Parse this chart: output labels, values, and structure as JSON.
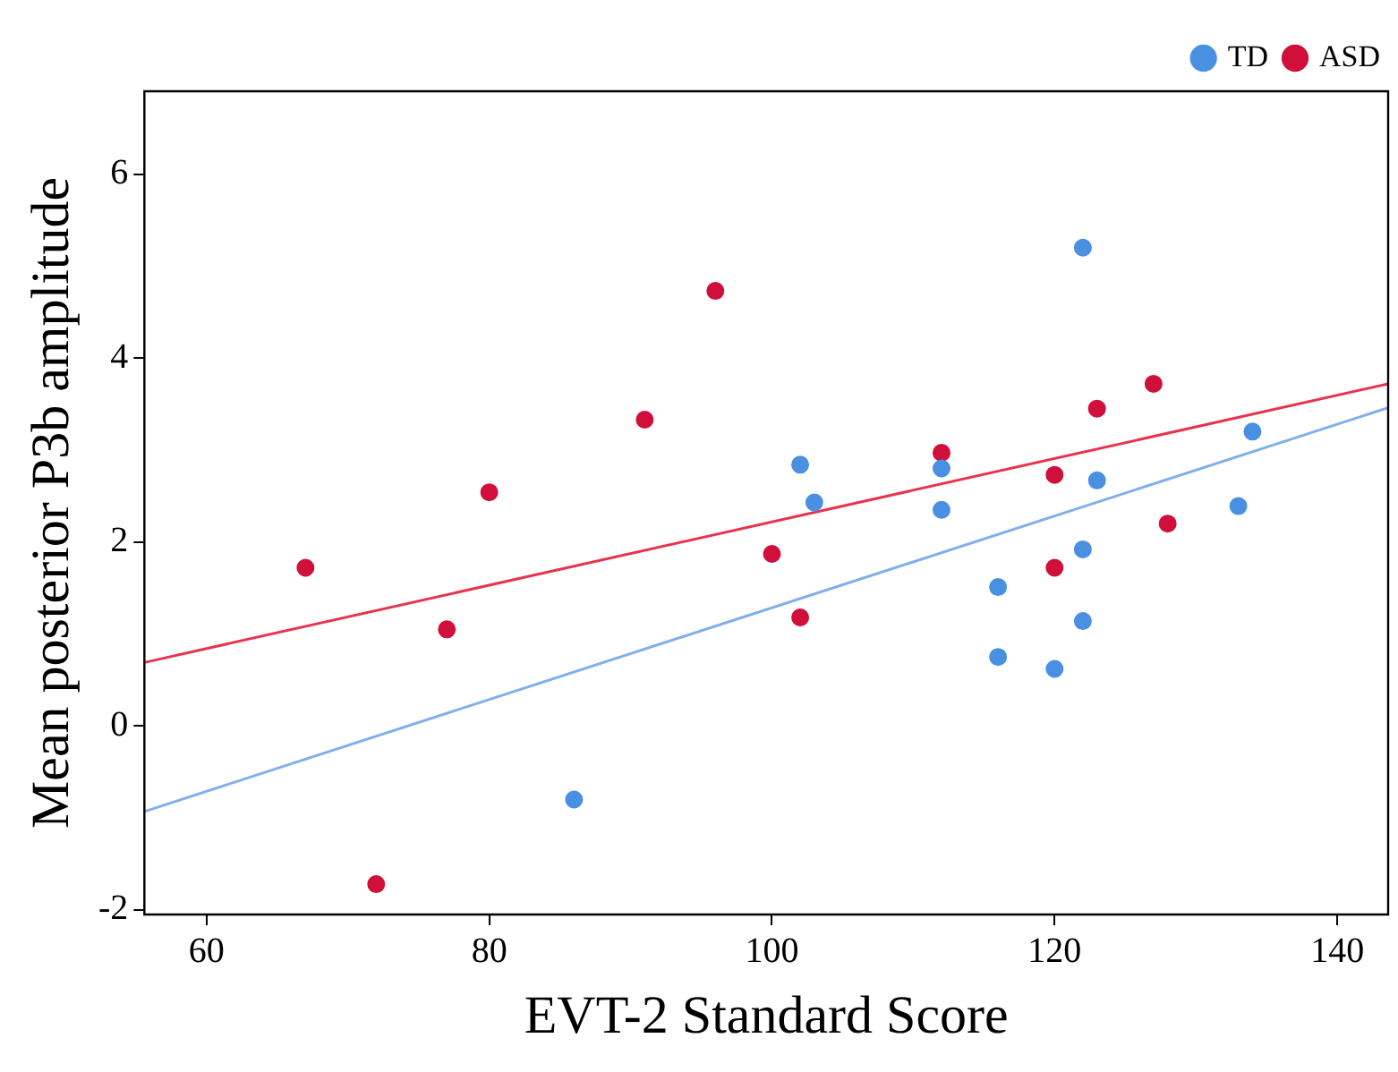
{
  "chart_data": {
    "type": "scatter",
    "xlabel": "EVT-2 Standard Score",
    "ylabel": "Mean posterior P3b amplitude",
    "xlim": [
      55.6,
      143.6
    ],
    "xticks": [
      60,
      80,
      100,
      120,
      140
    ],
    "ylim": [
      -2.05,
      6.9
    ],
    "yticks": [
      -2,
      0,
      2,
      4,
      6
    ],
    "grid": false,
    "legend": "top right",
    "marker": "circle",
    "series": [
      {
        "name": "TD",
        "color": "#4a90e2",
        "x": [
          86,
          102,
          103,
          112,
          112,
          116,
          116,
          120,
          122,
          122,
          122,
          123,
          133,
          134
        ],
        "values": [
          -0.8,
          2.84,
          2.43,
          2.35,
          2.8,
          1.51,
          0.75,
          0.62,
          5.2,
          1.92,
          1.14,
          2.67,
          2.39,
          3.2
        ]
      },
      {
        "name": "ASD",
        "color": "#d0103a",
        "x": [
          67,
          72,
          77,
          80,
          91,
          96,
          100,
          102,
          112,
          120,
          120,
          123,
          127,
          128
        ],
        "values": [
          1.72,
          -1.72,
          1.05,
          2.54,
          3.33,
          4.73,
          1.87,
          1.18,
          2.97,
          2.73,
          1.72,
          3.45,
          3.72,
          2.2
        ]
      },
      {
        "type": "line",
        "color": "#e8334f",
        "x": [
          55.6,
          143.6
        ],
        "values": [
          0.69,
          3.72
        ],
        "marker": "none"
      },
      {
        "type": "line",
        "color": "#7fb0ec",
        "x": [
          55.6,
          143.6
        ],
        "values": [
          -0.93,
          3.46
        ],
        "marker": "none"
      }
    ]
  }
}
